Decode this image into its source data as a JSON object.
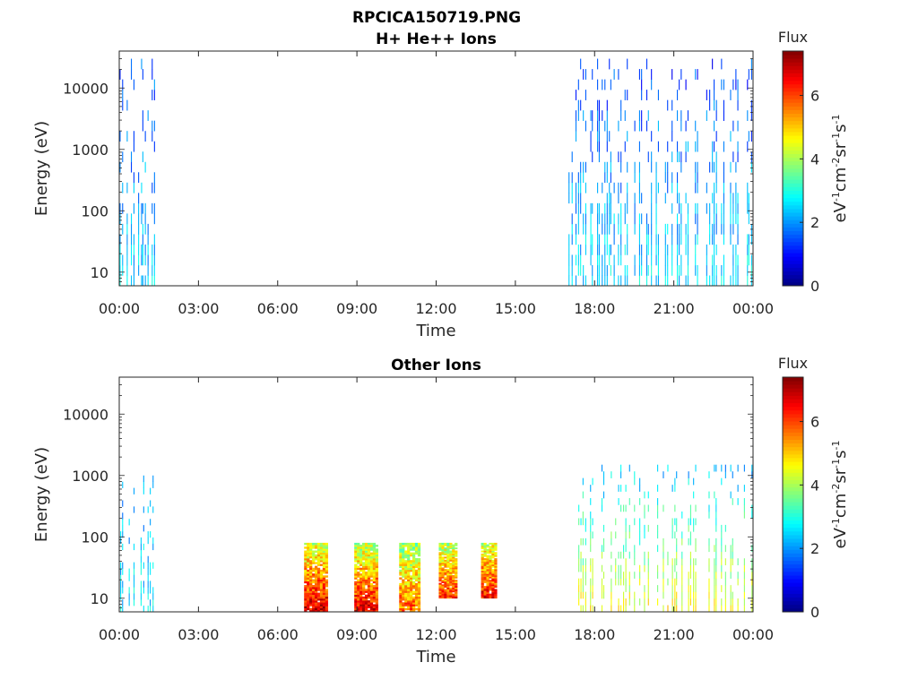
{
  "figure": {
    "title": "RPCICA150719.PNG"
  },
  "chart_data": [
    {
      "type": "heatmap",
      "title": "H+ He++ Ions",
      "xlabel": "Time",
      "ylabel": "Energy (eV)",
      "yscale": "log",
      "xlim": [
        0,
        24
      ],
      "ylim": [
        6,
        40000
      ],
      "x_ticks": [
        "00:00",
        "03:00",
        "06:00",
        "09:00",
        "12:00",
        "15:00",
        "18:00",
        "21:00",
        "00:00"
      ],
      "y_ticks": [
        {
          "value": 10,
          "label": "10"
        },
        {
          "value": 100,
          "label": "100"
        },
        {
          "value": 1000,
          "label": "1000"
        },
        {
          "value": 10000,
          "label": "10000"
        }
      ],
      "colorbar": {
        "title": "Flux",
        "label": "eV-1cm-2sr-1s-1",
        "range": [
          0,
          7.4
        ],
        "ticks": [
          {
            "value": 0,
            "label": "0"
          },
          {
            "value": 2,
            "label": "2"
          },
          {
            "value": 4,
            "label": "4"
          },
          {
            "value": 6,
            "label": "6"
          }
        ],
        "colormap": "jet"
      },
      "blocks": [
        {
          "t_start": 0.0,
          "t_end": 1.4,
          "e_min": 6,
          "e_max": 30000,
          "pattern": "streaks",
          "low_flux": 2.4,
          "high_flux": 1.5
        },
        {
          "t_start": 17.0,
          "t_end": 24.0,
          "e_min": 6,
          "e_max": 30000,
          "pattern": "streaks",
          "low_flux": 2.6,
          "high_flux": 1.3
        }
      ]
    },
    {
      "type": "heatmap",
      "title": "Other Ions",
      "xlabel": "Time",
      "ylabel": "Energy (eV)",
      "yscale": "log",
      "xlim": [
        0,
        24
      ],
      "ylim": [
        6,
        40000
      ],
      "x_ticks": [
        "00:00",
        "03:00",
        "06:00",
        "09:00",
        "12:00",
        "15:00",
        "18:00",
        "21:00",
        "00:00"
      ],
      "y_ticks": [
        {
          "value": 10,
          "label": "10"
        },
        {
          "value": 100,
          "label": "100"
        },
        {
          "value": 1000,
          "label": "1000"
        },
        {
          "value": 10000,
          "label": "10000"
        }
      ],
      "colorbar": {
        "title": "Flux",
        "label": "eV-1cm-2sr-1s-1",
        "range": [
          0,
          7.4
        ],
        "ticks": [
          {
            "value": 0,
            "label": "0"
          },
          {
            "value": 2,
            "label": "2"
          },
          {
            "value": 4,
            "label": "4"
          },
          {
            "value": 6,
            "label": "6"
          }
        ],
        "colormap": "jet"
      },
      "blocks": [
        {
          "t_start": 0.0,
          "t_end": 1.4,
          "e_min": 6,
          "e_max": 1000,
          "pattern": "streaks",
          "low_flux": 2.6,
          "high_flux": 2.0
        },
        {
          "t_start": 7.0,
          "t_end": 7.9,
          "e_min": 6,
          "e_max": 80,
          "pattern": "burst",
          "low_flux": 6.8,
          "high_flux": 4.2
        },
        {
          "t_start": 8.9,
          "t_end": 9.8,
          "e_min": 6,
          "e_max": 80,
          "pattern": "burst",
          "low_flux": 6.6,
          "high_flux": 4.0
        },
        {
          "t_start": 10.6,
          "t_end": 11.4,
          "e_min": 6,
          "e_max": 80,
          "pattern": "burst",
          "low_flux": 5.8,
          "high_flux": 3.8
        },
        {
          "t_start": 12.1,
          "t_end": 12.8,
          "e_min": 10,
          "e_max": 80,
          "pattern": "burst",
          "low_flux": 6.2,
          "high_flux": 4.0
        },
        {
          "t_start": 13.7,
          "t_end": 14.3,
          "e_min": 10,
          "e_max": 80,
          "pattern": "burst",
          "low_flux": 6.5,
          "high_flux": 4.2
        },
        {
          "t_start": 17.0,
          "t_end": 24.0,
          "e_min": 6,
          "e_max": 1500,
          "pattern": "streaks",
          "low_flux": 4.6,
          "high_flux": 2.2
        }
      ]
    }
  ]
}
